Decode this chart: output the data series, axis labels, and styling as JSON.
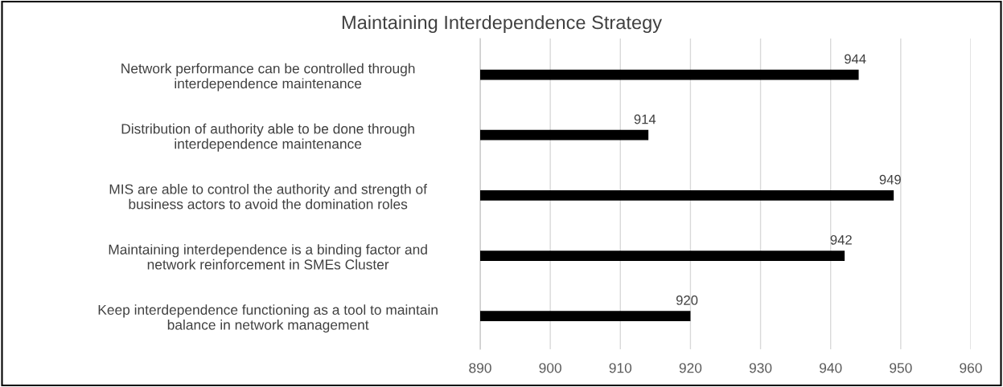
{
  "chart_data": {
    "type": "bar",
    "orientation": "horizontal",
    "title": "Maintaining Interdependence Strategy",
    "categories": [
      "Network performance can be controlled through\ninterdependence maintenance",
      "Distribution of authority able to be done through\ninterdependence maintenance",
      "MIS are able to control the authority and strength of\nbusiness actors to avoid the domination roles",
      "Maintaining interdependence is a binding factor and\nnetwork reinforcement in SMEs Cluster",
      "Keep interdependence functioning as a tool to maintain\nbalance in network management"
    ],
    "values": [
      944,
      914,
      949,
      942,
      920
    ],
    "color": "#000000",
    "xlim": [
      890,
      960
    ],
    "xticks": [
      890,
      900,
      910,
      920,
      930,
      940,
      950,
      960
    ],
    "grid": "x",
    "data_labels": true
  }
}
